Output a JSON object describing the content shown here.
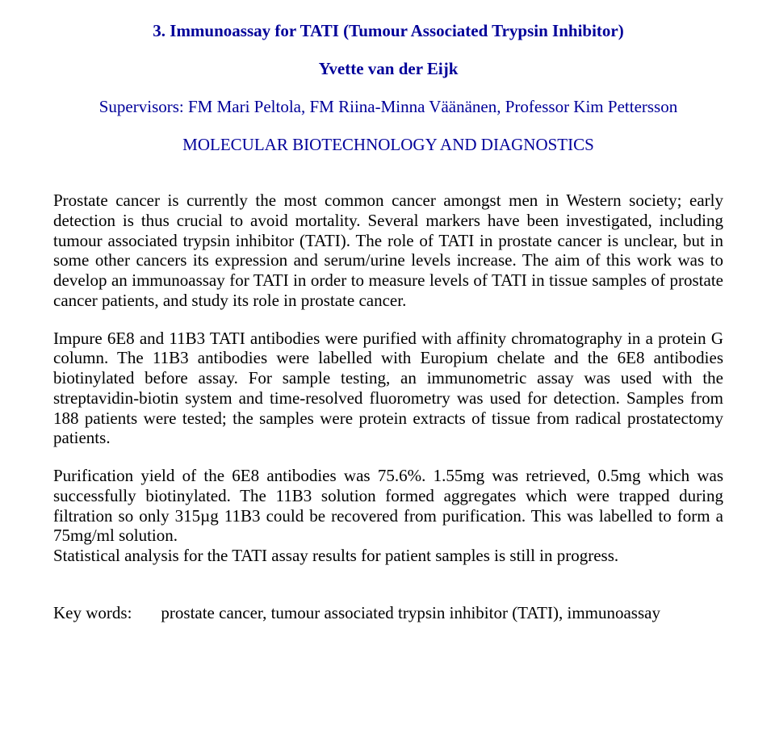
{
  "title": "3. Immunoassay for TATI (Tumour Associated Trypsin Inhibitor)",
  "author": "Yvette van der Eijk",
  "supervisors": "Supervisors: FM Mari Peltola, FM Riina-Minna Väänänen, Professor Kim Pettersson",
  "department": "MOLECULAR BIOTECHNOLOGY AND DIAGNOSTICS",
  "paragraphs": {
    "p1": "Prostate cancer is currently the most common cancer amongst men in Western society; early detection is thus crucial to avoid mortality. Several markers have been investigated, including tumour associated trypsin inhibitor (TATI). The role of TATI in prostate cancer is unclear, but in some other cancers its expression and serum/urine levels increase. The aim of this work was to develop an immunoassay for TATI in order to measure levels of TATI in tissue samples of prostate cancer patients, and study its role in prostate cancer.",
    "p2": "Impure 6E8 and 11B3 TATI antibodies were purified with affinity chromatography in a protein G column. The 11B3 antibodies were labelled with Europium chelate and the 6E8 antibodies biotinylated before assay. For sample testing, an immunometric assay was used with the streptavidin-biotin system and time-resolved fluorometry was used for detection. Samples from 188 patients were tested; the samples were protein extracts of tissue from radical prostatectomy patients.",
    "p3": "Purification yield of the 6E8 antibodies was 75.6%. 1.55mg was retrieved, 0.5mg which was successfully biotinylated. The 11B3 solution formed aggregates which were trapped during filtration so only 315µg 11B3 could be recovered from purification. This was labelled to form a 75mg/ml solution.",
    "p4": "Statistical analysis for the TATI assay results for patient samples is still in progress."
  },
  "keywords": {
    "label": "Key words:",
    "value": "prostate cancer, tumour associated trypsin inhibitor (TATI), immunoassay"
  },
  "colors": {
    "heading": "#000099",
    "body": "#000000",
    "background": "#ffffff"
  },
  "typography": {
    "font_family": "Times New Roman",
    "body_fontsize_pt": 16,
    "title_weight": "bold"
  }
}
